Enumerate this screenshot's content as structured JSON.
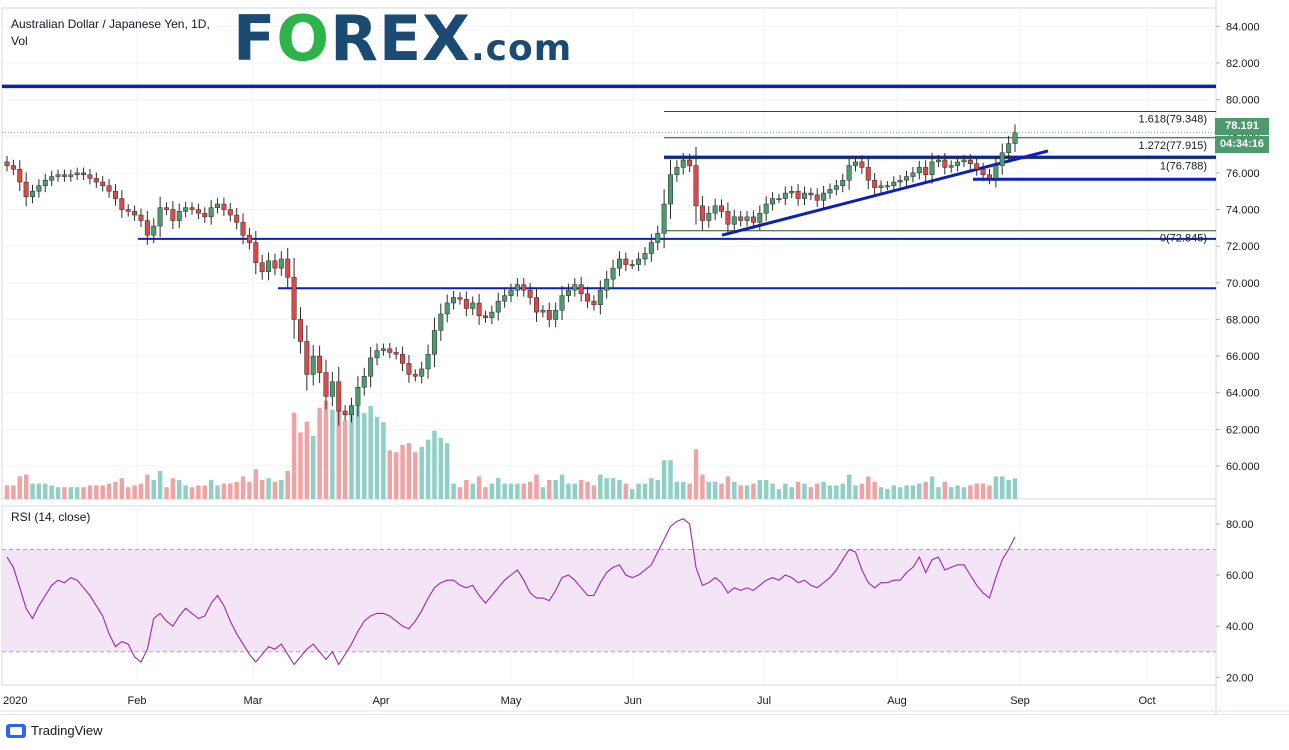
{
  "header": {
    "title": "Australian Dollar / Japanese Yen, 1D,",
    "vol_label": "Vol",
    "logo_part1": "F",
    "logo_o": "O",
    "logo_part2": "REX",
    "logo_suffix": ".com"
  },
  "price_tags": {
    "last_price": "78.191",
    "countdown": "04:34:16"
  },
  "fib_labels": {
    "f1618": "1.618(79.348)",
    "f1272": "1.272(77.915)",
    "f1": "1(76.788)",
    "f0": "0(72.845)"
  },
  "rsi_label": "RSI (14, close)",
  "footer": {
    "brand": "TradingView"
  },
  "colors": {
    "up": "#4c9a6e",
    "down": "#d94a4a",
    "vol_up": "#8fcfc6",
    "vol_down": "#f0a3a3",
    "support_line": "#0c1ebe",
    "fib_line": "#2b4f1a",
    "rsi_line": "#9c27b0",
    "rsi_band": "#f3e5f5"
  },
  "chart_data": [
    {
      "type": "candlestick",
      "title": "",
      "xlabel": "",
      "ylabel": "",
      "x_ticks": [
        "2020",
        "Feb",
        "Mar",
        "Apr",
        "May",
        "Jun",
        "Jul",
        "Aug",
        "Sep",
        "Oct"
      ],
      "y_ticks": [
        "84.000",
        "82.000",
        "80.000",
        "78.000",
        "76.000",
        "74.000",
        "72.000",
        "70.000",
        "68.000",
        "66.000",
        "64.000",
        "62.000",
        "60.000"
      ],
      "ylim": [
        58.2,
        85.0
      ],
      "close_series": [
        76.4,
        76.2,
        75.5,
        74.7,
        75.0,
        75.3,
        75.6,
        75.8,
        75.9,
        75.8,
        75.9,
        76.0,
        75.9,
        75.7,
        75.5,
        75.3,
        75.0,
        74.6,
        74.0,
        73.9,
        73.7,
        73.4,
        72.6,
        73.1,
        74.1,
        74.0,
        73.4,
        73.9,
        74.1,
        74.0,
        73.8,
        73.6,
        74.1,
        74.3,
        74.0,
        73.7,
        73.3,
        72.6,
        72.2,
        71.1,
        70.6,
        71.2,
        70.8,
        71.3,
        70.3,
        68.0,
        66.8,
        65.0,
        66.0,
        65.1,
        63.8,
        64.6,
        63.0,
        62.8,
        63.3,
        64.3,
        64.9,
        65.9,
        66.3,
        66.4,
        66.2,
        66.1,
        65.6,
        65.0,
        64.9,
        65.3,
        66.1,
        67.4,
        68.3,
        68.9,
        69.2,
        69.1,
        68.6,
        68.9,
        68.2,
        68.1,
        68.4,
        69.0,
        69.3,
        69.6,
        69.9,
        69.6,
        69.2,
        68.4,
        68.5,
        68.0,
        68.5,
        69.3,
        69.6,
        69.9,
        69.4,
        69.0,
        68.8,
        69.6,
        70.2,
        70.8,
        71.3,
        71.0,
        71.0,
        71.3,
        71.6,
        72.2,
        72.7,
        74.3,
        75.9,
        76.3,
        76.7,
        76.4,
        74.2,
        73.4,
        73.8,
        74.2,
        73.9,
        73.2,
        73.6,
        73.4,
        73.6,
        73.3,
        73.8,
        74.3,
        74.6,
        74.6,
        74.9,
        75.0,
        74.6,
        74.9,
        74.8,
        74.5,
        74.9,
        75.1,
        75.3,
        75.6,
        76.4,
        76.6,
        76.3,
        75.6,
        75.2,
        75.3,
        75.3,
        75.5,
        75.6,
        75.8,
        76.0,
        76.3,
        75.9,
        76.6,
        76.7,
        76.3,
        76.4,
        76.6,
        76.7,
        76.5,
        76.2,
        75.9,
        75.7,
        76.4,
        77.1,
        77.6,
        78.19
      ],
      "overlays": {
        "horizontal_levels": [
          80.72,
          76.85,
          75.65,
          72.4,
          69.7
        ],
        "fibonacci_levels": [
          79.348,
          77.915,
          76.788,
          72.845
        ],
        "trendline_from": 72.6,
        "trendline_to": 77.2
      },
      "volume_present": true
    },
    {
      "type": "line",
      "title": "RSI (14, close)",
      "y_ticks": [
        "80.00",
        "60.00",
        "40.00",
        "20.00"
      ],
      "ylim": [
        17,
        87
      ],
      "band": [
        30,
        70
      ],
      "x_ticks": [
        "2020",
        "Feb",
        "Mar",
        "Apr",
        "May",
        "Jun",
        "Jul",
        "Aug",
        "Sep",
        "Oct"
      ],
      "values": [
        67,
        63,
        55,
        47,
        43,
        48,
        52,
        56,
        58,
        57,
        59,
        58,
        55,
        52,
        48,
        44,
        37,
        32,
        34,
        33,
        28,
        26,
        31,
        43,
        45,
        42,
        40,
        44,
        47,
        45,
        43,
        44,
        49,
        52,
        48,
        42,
        37,
        33,
        29,
        26,
        29,
        32,
        31,
        33,
        29,
        25,
        28,
        31,
        33,
        30,
        27,
        30,
        25,
        29,
        33,
        38,
        42,
        44,
        45,
        45,
        44,
        42,
        40,
        39,
        42,
        46,
        51,
        55,
        57,
        58,
        58,
        56,
        55,
        56,
        52,
        49,
        52,
        55,
        58,
        60,
        62,
        58,
        53,
        51,
        51,
        50,
        54,
        59,
        60,
        58,
        55,
        52,
        52,
        57,
        61,
        63,
        64,
        60,
        59,
        60,
        62,
        64,
        69,
        74,
        79,
        81,
        82,
        80,
        63,
        56,
        57,
        59,
        57,
        53,
        55,
        54,
        55,
        54,
        56,
        58,
        59,
        58,
        60,
        59,
        57,
        58,
        56,
        55,
        57,
        59,
        62,
        66,
        70,
        69,
        62,
        57,
        55,
        57,
        57,
        58,
        58,
        61,
        63,
        67,
        61,
        66,
        67,
        62,
        63,
        64,
        64,
        60,
        56,
        53,
        51,
        59,
        66,
        70,
        75
      ]
    }
  ]
}
